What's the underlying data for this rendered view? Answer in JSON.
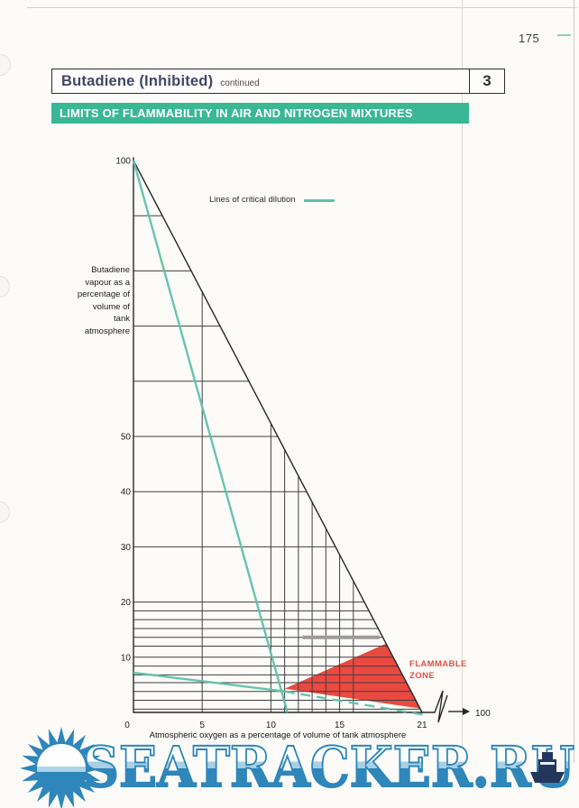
{
  "page": {
    "number": "175",
    "header": {
      "title": "Butadiene (Inhibited)",
      "suffix": "continued",
      "section": "3"
    },
    "banner": "LIMITS OF FLAMMABILITY IN AIR AND NITROGEN MIXTURES"
  },
  "watermark": {
    "text": "SEATRACKER.RU",
    "sun_icon": "sun-over-sea-icon",
    "ship_icon": "cargo-ship-icon"
  },
  "colors": {
    "banner_teal": "#3ab795",
    "line_teal": "#5fc2a9",
    "flammable_red": "#e8352b",
    "flammable_label_red": "#e25048",
    "header_text": "#3e4766",
    "watermark_blue": "#2e86ba"
  },
  "chart_data": {
    "type": "area",
    "title": "LIMITS OF FLAMMABILITY IN AIR AND NITROGEN MIXTURES",
    "xlabel": "Atmospheric oxygen as a percentage of volume of tank atmosphere",
    "ylabel": "Butadiene vapour as a percentage of volume of tank atmosphere",
    "xlim": [
      0,
      21
    ],
    "ylim": [
      0,
      100
    ],
    "x_axis_break_to": 100,
    "xtick_values": [
      0,
      5,
      10,
      15,
      21,
      100
    ],
    "xtick_labels": [
      "0",
      "5",
      "10",
      "15",
      "21",
      "100"
    ],
    "ytick_values": [
      100,
      50,
      40,
      30,
      20,
      10
    ],
    "ytick_labels": [
      "100",
      "50",
      "40",
      "30",
      "20",
      "10"
    ],
    "legend_label": "Lines of critical dilution",
    "flammable_zone": {
      "label": "FLAMMABLE ZONE",
      "polygon": [
        [
          11,
          4.3
        ],
        [
          18.4,
          12.5
        ],
        [
          20.9,
          0.7
        ]
      ]
    },
    "air_line": [
      [
        0,
        100
      ],
      [
        21,
        0
      ]
    ],
    "critical_dilution_lines": [
      {
        "style": "solid",
        "points": [
          [
            0,
            100
          ],
          [
            11.2,
            0
          ]
        ]
      },
      {
        "style": "solid",
        "points": [
          [
            0,
            7.2
          ],
          [
            11,
            3.8
          ]
        ]
      },
      {
        "style": "dashed",
        "points": [
          [
            11,
            3.8
          ],
          [
            21.3,
            -0.5
          ]
        ]
      }
    ],
    "h_gridlines": [
      90,
      80,
      70,
      60,
      50,
      40,
      30,
      20,
      18.4,
      16.8,
      15.2,
      13.6,
      12,
      10,
      8.4,
      6.8,
      5.4,
      3.8,
      2.2,
      0.6
    ],
    "v_gridlines": [
      5,
      10,
      11,
      12,
      13,
      14,
      15,
      16
    ],
    "bold_segment": {
      "y": 13.6,
      "x1": 12.3,
      "x2": 17.9
    },
    "grid": true,
    "legend_position": "upper-right-inside"
  }
}
